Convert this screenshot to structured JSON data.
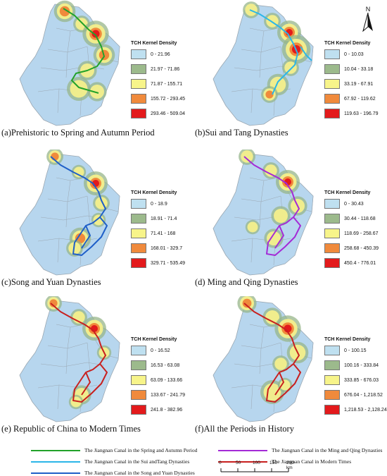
{
  "north_label": "N",
  "map_colors": {
    "land": "#b7d6ee",
    "outline": "#9aa7b2",
    "halo_yellow": "#f4ef8c",
    "halo_green": "#97b58a",
    "halo_orange": "#f08a3c",
    "core_red": "#e31a1c"
  },
  "panels": [
    {
      "id": "a",
      "caption": "(a)Prehistoric to Spring and Autumn Period",
      "legend_title": "TCH Kernel Density",
      "legend": [
        {
          "label": "0 - 21.96",
          "color": "#bfe0f0"
        },
        {
          "label": "21.97 - 71.86",
          "color": "#9cba8c"
        },
        {
          "label": "71.87 - 155.71",
          "color": "#f7f48a"
        },
        {
          "label": "155.72 - 293.45",
          "color": "#f08a3c"
        },
        {
          "label": "293.46 - 509.04",
          "color": "#e31a1c"
        }
      ],
      "canal_color": "#22a22a",
      "route": "spring"
    },
    {
      "id": "b",
      "caption": "(b)Sui and Tang Dynasties",
      "legend_title": "TCH Kernel Density",
      "legend": [
        {
          "label": "0 - 10.03",
          "color": "#bfe0f0"
        },
        {
          "label": "10.04 - 33.18",
          "color": "#9cba8c"
        },
        {
          "label": "33.19 - 67.91",
          "color": "#f7f48a"
        },
        {
          "label": "67.92 - 119.62",
          "color": "#f08a3c"
        },
        {
          "label": "119.63 - 196.79",
          "color": "#e31a1c"
        }
      ],
      "canal_color": "#2bb6e8",
      "route": "sui"
    },
    {
      "id": "c",
      "caption": "(c)Song and Yuan Dynasties",
      "legend_title": "TCH Kernel Density",
      "legend": [
        {
          "label": "0 - 18.9",
          "color": "#bfe0f0"
        },
        {
          "label": "18.91 - 71.4",
          "color": "#9cba8c"
        },
        {
          "label": "71.41 - 168",
          "color": "#f7f48a"
        },
        {
          "label": "168.01 - 329.7",
          "color": "#f08a3c"
        },
        {
          "label": "329.71 - 535.49",
          "color": "#e31a1c"
        }
      ],
      "canal_color": "#1f5fc8",
      "route": "loop"
    },
    {
      "id": "d",
      "caption": "(d) Ming and Qing Dynasties",
      "legend_title": "TCH Kernel Density",
      "legend": [
        {
          "label": "0 - 30.43",
          "color": "#bfe0f0"
        },
        {
          "label": "30.44 - 118.68",
          "color": "#9cba8c"
        },
        {
          "label": "118.69 - 258.67",
          "color": "#f7f48a"
        },
        {
          "label": "258.68 - 450.39",
          "color": "#f08a3c"
        },
        {
          "label": "450.4 - 776.01",
          "color": "#e31a1c"
        }
      ],
      "canal_color": "#a42bd6",
      "route": "loop"
    },
    {
      "id": "e",
      "caption": "(e) Republic of China to Modern Times",
      "legend_title": "TCH Kernel Density",
      "legend": [
        {
          "label": "0 - 16.52",
          "color": "#bfe0f0"
        },
        {
          "label": "16.53 - 63.08",
          "color": "#9cba8c"
        },
        {
          "label": "63.09 - 133.66",
          "color": "#f7f48a"
        },
        {
          "label": "133.67 - 241.79",
          "color": "#f08a3c"
        },
        {
          "label": "241.8 - 382.96",
          "color": "#e31a1c"
        }
      ],
      "canal_color": "#c8201f",
      "route": "loop"
    },
    {
      "id": "f",
      "caption": "(f)All the Periods in History",
      "legend_title": "TCH Kernel Density",
      "legend": [
        {
          "label": "0 - 100.15",
          "color": "#bfe0f0"
        },
        {
          "label": "100.16 - 333.84",
          "color": "#9cba8c"
        },
        {
          "label": "333.85 - 676.03",
          "color": "#f7f48a"
        },
        {
          "label": "676.04 - 1,218.52",
          "color": "#f08a3c"
        },
        {
          "label": "1,218.53 - 2,128.24",
          "color": "#e31a1c"
        }
      ],
      "canal_color": "#c8201f",
      "route": "loop"
    }
  ],
  "canal_legend": [
    {
      "label": "The Jiangnan Canal in the Spring and Autumn Period",
      "color": "#22a22a"
    },
    {
      "label": "The Jiangnan Canal in the Ming and Qing Dynasties",
      "color": "#a42bd6"
    },
    {
      "label": "The Jiangnan Canal in the Sui andTang Dynasties",
      "color": "#2bb6e8"
    },
    {
      "label": "The Jiangnan Canal in Modern Times",
      "color": "#c8201f"
    },
    {
      "label": "The Jiangnan Canal in the Song and Yuan Dynasties",
      "color": "#1f5fc8"
    }
  ],
  "scale_bar": {
    "ticks": [
      "0",
      "50",
      "100",
      "150",
      "200 km"
    ]
  }
}
